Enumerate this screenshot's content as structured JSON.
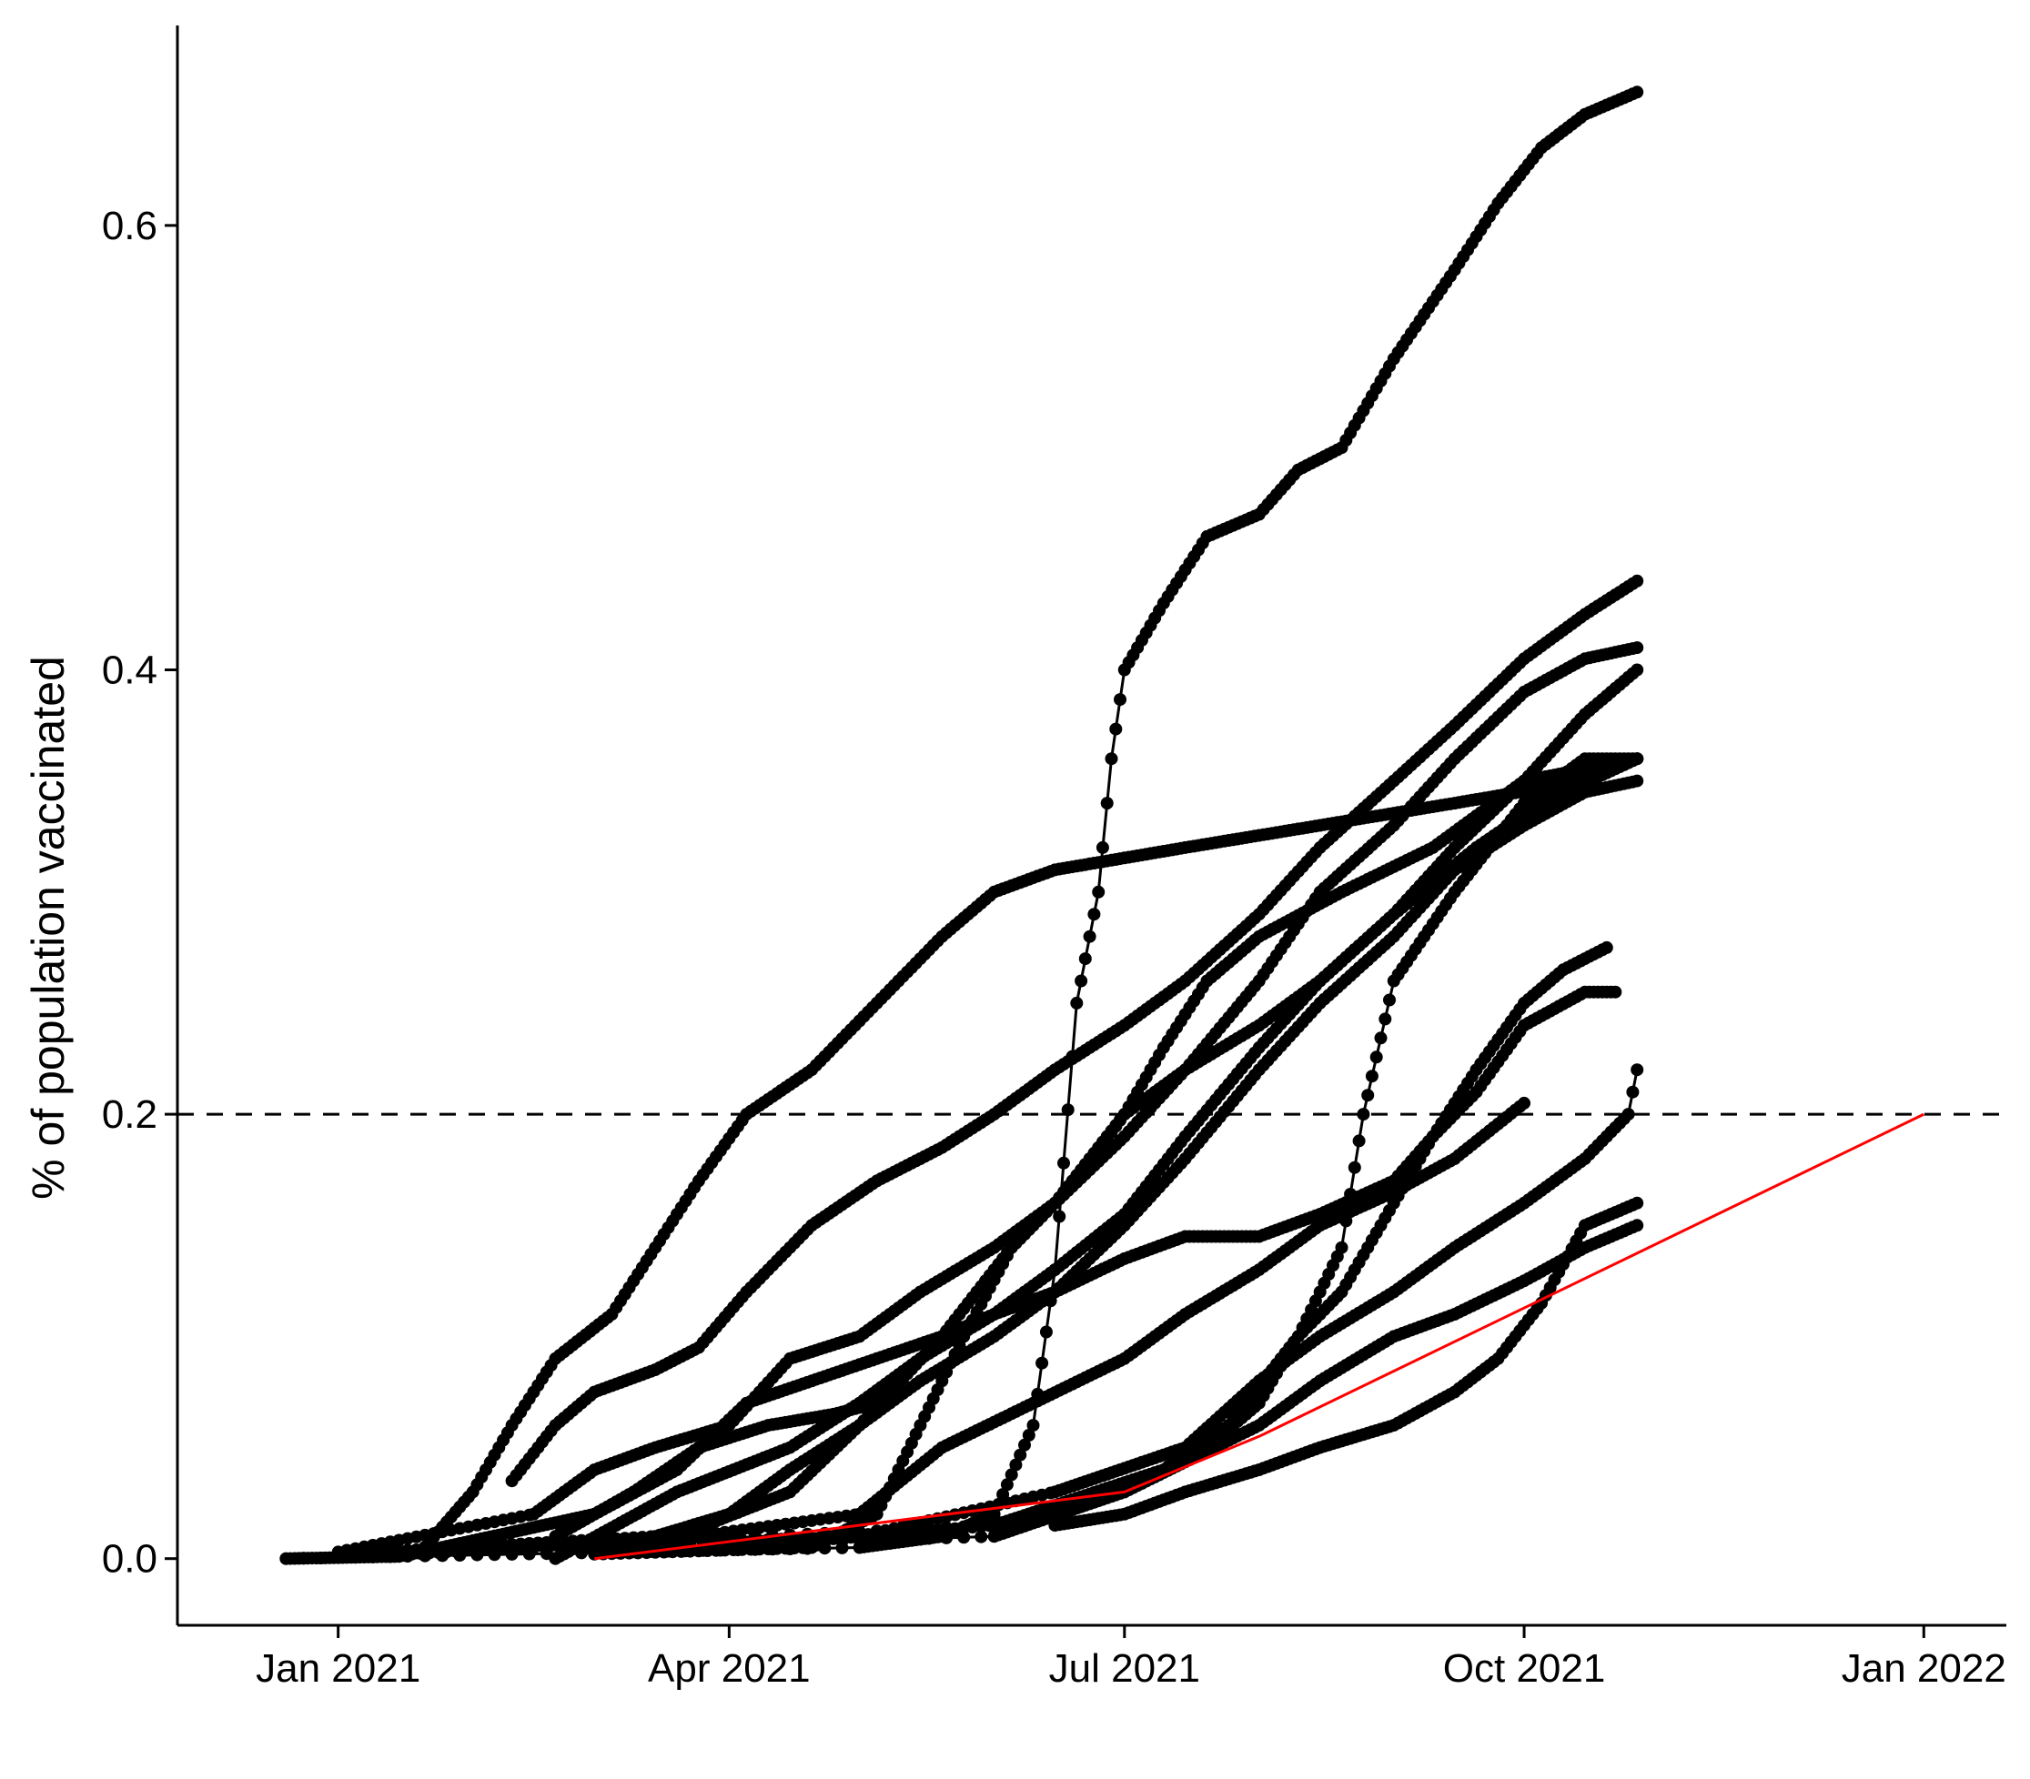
{
  "chart_data": {
    "type": "line",
    "title": "",
    "xlabel": "",
    "ylabel": "% of population vaccinated",
    "x_axis": {
      "range": [
        "2020-11-25",
        "2022-01-20"
      ],
      "ticks": [
        {
          "date": "2021-01-01",
          "label": "Jan 2021"
        },
        {
          "date": "2021-04-01",
          "label": "Apr 2021"
        },
        {
          "date": "2021-07-01",
          "label": "Jul 2021"
        },
        {
          "date": "2021-10-01",
          "label": "Oct 2021"
        },
        {
          "date": "2022-01-01",
          "label": "Jan 2022"
        }
      ]
    },
    "y_axis": {
      "range": [
        -0.03,
        0.69
      ],
      "ticks": [
        {
          "value": 0.0,
          "label": "0.0"
        },
        {
          "value": 0.2,
          "label": "0.2"
        },
        {
          "value": 0.4,
          "label": "0.4"
        },
        {
          "value": 0.6,
          "label": "0.6"
        }
      ]
    },
    "grid": false,
    "legend": "none",
    "reference_line": {
      "y": 0.2,
      "style": "dashed",
      "color": "#000000"
    },
    "colors": {
      "series": "#000000",
      "highlight": "#ff0000"
    },
    "series": [
      {
        "points": [
          [
            "2020-12-20",
            0
          ],
          [
            "2021-01-15",
            0.001
          ],
          [
            "2021-01-20",
            0.003
          ],
          [
            "2021-02-01",
            0.03
          ],
          [
            "2021-02-10",
            0.06
          ],
          [
            "2021-02-20",
            0.09
          ],
          [
            "2021-03-05",
            0.11
          ],
          [
            "2021-03-15",
            0.14
          ],
          [
            "2021-03-25",
            0.17
          ],
          [
            "2021-04-05",
            0.2
          ],
          [
            "2021-04-20",
            0.22
          ],
          [
            "2021-05-05",
            0.25
          ],
          [
            "2021-05-20",
            0.28
          ],
          [
            "2021-06-01",
            0.3
          ],
          [
            "2021-06-15",
            0.31
          ],
          [
            "2021-07-15",
            0.32
          ],
          [
            "2021-08-15",
            0.33
          ],
          [
            "2021-09-15",
            0.34
          ],
          [
            "2021-10-15",
            0.35
          ],
          [
            "2021-10-27",
            0.36
          ]
        ]
      },
      {
        "points": [
          [
            "2020-12-20",
            0
          ],
          [
            "2021-05-01",
            0.005
          ],
          [
            "2021-05-20",
            0.01
          ],
          [
            "2021-06-01",
            0.02
          ],
          [
            "2021-06-10",
            0.06
          ],
          [
            "2021-06-15",
            0.13
          ],
          [
            "2021-06-20",
            0.25
          ],
          [
            "2021-06-25",
            0.3
          ],
          [
            "2021-06-28",
            0.36
          ],
          [
            "2021-07-01",
            0.4
          ],
          [
            "2021-07-10",
            0.43
          ],
          [
            "2021-07-20",
            0.46
          ],
          [
            "2021-08-01",
            0.47
          ],
          [
            "2021-08-10",
            0.49
          ],
          [
            "2021-08-20",
            0.5
          ],
          [
            "2021-09-01",
            0.54
          ],
          [
            "2021-09-15",
            0.58
          ],
          [
            "2021-09-25",
            0.61
          ],
          [
            "2021-10-05",
            0.635
          ],
          [
            "2021-10-15",
            0.65
          ],
          [
            "2021-10-27",
            0.66
          ]
        ]
      },
      {
        "points": [
          [
            "2021-02-10",
            0.035
          ],
          [
            "2021-02-20",
            0.06
          ],
          [
            "2021-03-01",
            0.075
          ],
          [
            "2021-03-15",
            0.085
          ],
          [
            "2021-03-25",
            0.095
          ],
          [
            "2021-04-05",
            0.12
          ],
          [
            "2021-04-20",
            0.15
          ],
          [
            "2021-05-05",
            0.17
          ],
          [
            "2021-05-20",
            0.185
          ],
          [
            "2021-06-01",
            0.2
          ],
          [
            "2021-06-15",
            0.22
          ],
          [
            "2021-07-01",
            0.24
          ],
          [
            "2021-07-15",
            0.26
          ],
          [
            "2021-08-01",
            0.29
          ],
          [
            "2021-08-15",
            0.32
          ],
          [
            "2021-09-01",
            0.35
          ],
          [
            "2021-09-15",
            0.375
          ],
          [
            "2021-10-01",
            0.405
          ],
          [
            "2021-10-15",
            0.425
          ],
          [
            "2021-10-27",
            0.44
          ]
        ]
      },
      {
        "points": [
          [
            "2021-01-01",
            0.003
          ],
          [
            "2021-02-15",
            0.02
          ],
          [
            "2021-03-01",
            0.04
          ],
          [
            "2021-03-15",
            0.05
          ],
          [
            "2021-04-01",
            0.06
          ],
          [
            "2021-04-15",
            0.09
          ],
          [
            "2021-05-01",
            0.1
          ],
          [
            "2021-05-15",
            0.12
          ],
          [
            "2021-06-01",
            0.14
          ],
          [
            "2021-06-15",
            0.16
          ],
          [
            "2021-07-01",
            0.19
          ],
          [
            "2021-07-15",
            0.22
          ],
          [
            "2021-08-01",
            0.26
          ],
          [
            "2021-08-15",
            0.3
          ],
          [
            "2021-09-01",
            0.33
          ],
          [
            "2021-09-15",
            0.36
          ],
          [
            "2021-10-01",
            0.39
          ],
          [
            "2021-10-15",
            0.405
          ],
          [
            "2021-10-27",
            0.41
          ]
        ]
      },
      {
        "points": [
          [
            "2021-02-20",
            0
          ],
          [
            "2021-03-20",
            0.03
          ],
          [
            "2021-04-15",
            0.05
          ],
          [
            "2021-05-01",
            0.07
          ],
          [
            "2021-05-15",
            0.09
          ],
          [
            "2021-06-01",
            0.11
          ],
          [
            "2021-06-15",
            0.13
          ],
          [
            "2021-07-01",
            0.155
          ],
          [
            "2021-07-15",
            0.19
          ],
          [
            "2021-08-01",
            0.23
          ],
          [
            "2021-08-15",
            0.26
          ],
          [
            "2021-09-01",
            0.29
          ],
          [
            "2021-09-15",
            0.32
          ],
          [
            "2021-10-01",
            0.35
          ],
          [
            "2021-10-15",
            0.38
          ],
          [
            "2021-10-27",
            0.4
          ]
        ]
      },
      {
        "points": [
          [
            "2021-01-01",
            0.002
          ],
          [
            "2021-03-15",
            0.01
          ],
          [
            "2021-04-01",
            0.02
          ],
          [
            "2021-04-15",
            0.04
          ],
          [
            "2021-05-01",
            0.06
          ],
          [
            "2021-05-15",
            0.08
          ],
          [
            "2021-06-01",
            0.1
          ],
          [
            "2021-06-15",
            0.12
          ],
          [
            "2021-07-01",
            0.15
          ],
          [
            "2021-07-15",
            0.18
          ],
          [
            "2021-08-01",
            0.22
          ],
          [
            "2021-08-15",
            0.25
          ],
          [
            "2021-09-01",
            0.28
          ],
          [
            "2021-09-15",
            0.31
          ],
          [
            "2021-10-01",
            0.33
          ],
          [
            "2021-10-15",
            0.345
          ],
          [
            "2021-10-27",
            0.35
          ]
        ]
      },
      {
        "points": [
          [
            "2021-01-10",
            0.001
          ],
          [
            "2021-03-20",
            0.01
          ],
          [
            "2021-04-15",
            0.03
          ],
          [
            "2021-05-01",
            0.06
          ],
          [
            "2021-05-20",
            0.1
          ],
          [
            "2021-06-05",
            0.14
          ],
          [
            "2021-06-20",
            0.17
          ],
          [
            "2021-07-01",
            0.2
          ],
          [
            "2021-07-15",
            0.22
          ],
          [
            "2021-08-01",
            0.24
          ],
          [
            "2021-08-15",
            0.26
          ],
          [
            "2021-09-01",
            0.29
          ],
          [
            "2021-09-20",
            0.32
          ],
          [
            "2021-10-05",
            0.34
          ],
          [
            "2021-10-27",
            0.36
          ]
        ]
      },
      {
        "points": [
          [
            "2021-03-01",
            0.002
          ],
          [
            "2021-04-20",
            0.005
          ],
          [
            "2021-05-05",
            0.02
          ],
          [
            "2021-05-15",
            0.06
          ],
          [
            "2021-05-25",
            0.1
          ],
          [
            "2021-06-05",
            0.14
          ],
          [
            "2021-06-15",
            0.16
          ],
          [
            "2021-07-01",
            0.2
          ],
          [
            "2021-07-10",
            0.23
          ],
          [
            "2021-07-20",
            0.26
          ],
          [
            "2021-08-01",
            0.28
          ],
          [
            "2021-08-20",
            0.3
          ],
          [
            "2021-09-10",
            0.32
          ],
          [
            "2021-10-01",
            0.35
          ],
          [
            "2021-10-27",
            0.36
          ]
        ]
      },
      {
        "points": [
          [
            "2021-01-01",
            0.001
          ],
          [
            "2021-06-01",
            0.01
          ],
          [
            "2021-07-01",
            0.03
          ],
          [
            "2021-07-20",
            0.05
          ],
          [
            "2021-08-01",
            0.07
          ],
          [
            "2021-08-10",
            0.1
          ],
          [
            "2021-08-20",
            0.12
          ],
          [
            "2021-09-01",
            0.16
          ],
          [
            "2021-09-10",
            0.19
          ],
          [
            "2021-09-20",
            0.21
          ],
          [
            "2021-10-01",
            0.24
          ],
          [
            "2021-10-15",
            0.255
          ],
          [
            "2021-10-22",
            0.255
          ]
        ]
      },
      {
        "points": [
          [
            "2021-04-01",
            0.005
          ],
          [
            "2021-06-01",
            0.015
          ],
          [
            "2021-07-10",
            0.04
          ],
          [
            "2021-07-25",
            0.06
          ],
          [
            "2021-08-10",
            0.1
          ],
          [
            "2021-08-20",
            0.14
          ],
          [
            "2021-08-25",
            0.2
          ],
          [
            "2021-09-01",
            0.26
          ],
          [
            "2021-09-15",
            0.3
          ],
          [
            "2021-10-01",
            0.34
          ],
          [
            "2021-10-15",
            0.36
          ],
          [
            "2021-10-27",
            0.36
          ]
        ]
      },
      {
        "points": [
          [
            "2021-01-01",
            0.001
          ],
          [
            "2021-06-01",
            0.015
          ],
          [
            "2021-07-01",
            0.03
          ],
          [
            "2021-08-01",
            0.06
          ],
          [
            "2021-08-15",
            0.08
          ],
          [
            "2021-09-01",
            0.1
          ],
          [
            "2021-09-15",
            0.11
          ],
          [
            "2021-10-01",
            0.125
          ],
          [
            "2021-10-15",
            0.14
          ],
          [
            "2021-10-27",
            0.15
          ]
        ]
      },
      {
        "points": [
          [
            "2021-01-01",
            0.002
          ],
          [
            "2021-05-01",
            0.01
          ],
          [
            "2021-06-15",
            0.03
          ],
          [
            "2021-07-15",
            0.05
          ],
          [
            "2021-08-01",
            0.08
          ],
          [
            "2021-08-15",
            0.1
          ],
          [
            "2021-09-01",
            0.12
          ],
          [
            "2021-09-15",
            0.14
          ],
          [
            "2021-10-01",
            0.16
          ],
          [
            "2021-10-15",
            0.18
          ],
          [
            "2021-10-25",
            0.2
          ],
          [
            "2021-10-27",
            0.22
          ]
        ]
      },
      {
        "points": [
          [
            "2021-03-01",
            0.004
          ],
          [
            "2021-05-01",
            0.02
          ],
          [
            "2021-05-20",
            0.05
          ],
          [
            "2021-06-10",
            0.07
          ],
          [
            "2021-07-01",
            0.09
          ],
          [
            "2021-07-15",
            0.11
          ],
          [
            "2021-08-01",
            0.13
          ],
          [
            "2021-08-15",
            0.15
          ],
          [
            "2021-09-01",
            0.165
          ],
          [
            "2021-09-15",
            0.18
          ],
          [
            "2021-10-01",
            0.205
          ]
        ]
      },
      {
        "points": [
          [
            "2021-06-15",
            0.015
          ],
          [
            "2021-07-01",
            0.02
          ],
          [
            "2021-07-15",
            0.03
          ],
          [
            "2021-08-01",
            0.04
          ],
          [
            "2021-08-15",
            0.05
          ],
          [
            "2021-09-01",
            0.06
          ],
          [
            "2021-09-15",
            0.075
          ],
          [
            "2021-09-25",
            0.09
          ],
          [
            "2021-10-05",
            0.115
          ],
          [
            "2021-10-15",
            0.15
          ],
          [
            "2021-10-27",
            0.16
          ]
        ]
      },
      {
        "points": [
          [
            "2021-01-20",
            0.003
          ],
          [
            "2021-03-01",
            0.02
          ],
          [
            "2021-03-20",
            0.04
          ],
          [
            "2021-04-05",
            0.07
          ],
          [
            "2021-04-20",
            0.08
          ],
          [
            "2021-05-05",
            0.09
          ],
          [
            "2021-05-20",
            0.1
          ],
          [
            "2021-06-01",
            0.11
          ],
          [
            "2021-06-15",
            0.12
          ],
          [
            "2021-07-01",
            0.135
          ],
          [
            "2021-07-15",
            0.145
          ],
          [
            "2021-08-01",
            0.145
          ],
          [
            "2021-08-15",
            0.155
          ],
          [
            "2021-09-01",
            0.17
          ],
          [
            "2021-09-10",
            0.19
          ],
          [
            "2021-09-20",
            0.22
          ],
          [
            "2021-10-01",
            0.25
          ],
          [
            "2021-10-10",
            0.265
          ],
          [
            "2021-10-20",
            0.275
          ]
        ]
      },
      {
        "points": [
          [
            "2021-02-20",
            0.01
          ],
          [
            "2021-03-10",
            0.03
          ],
          [
            "2021-03-25",
            0.05
          ],
          [
            "2021-04-10",
            0.06
          ],
          [
            "2021-04-25",
            0.065
          ],
          [
            "2021-05-05",
            0.07
          ]
        ]
      },
      {
        "color": "highlight",
        "points": [
          [
            "2021-03-01",
            0
          ],
          [
            "2021-07-01",
            0.03
          ],
          [
            "2021-08-01",
            0.055
          ],
          [
            "2022-01-01",
            0.2
          ]
        ]
      }
    ]
  }
}
